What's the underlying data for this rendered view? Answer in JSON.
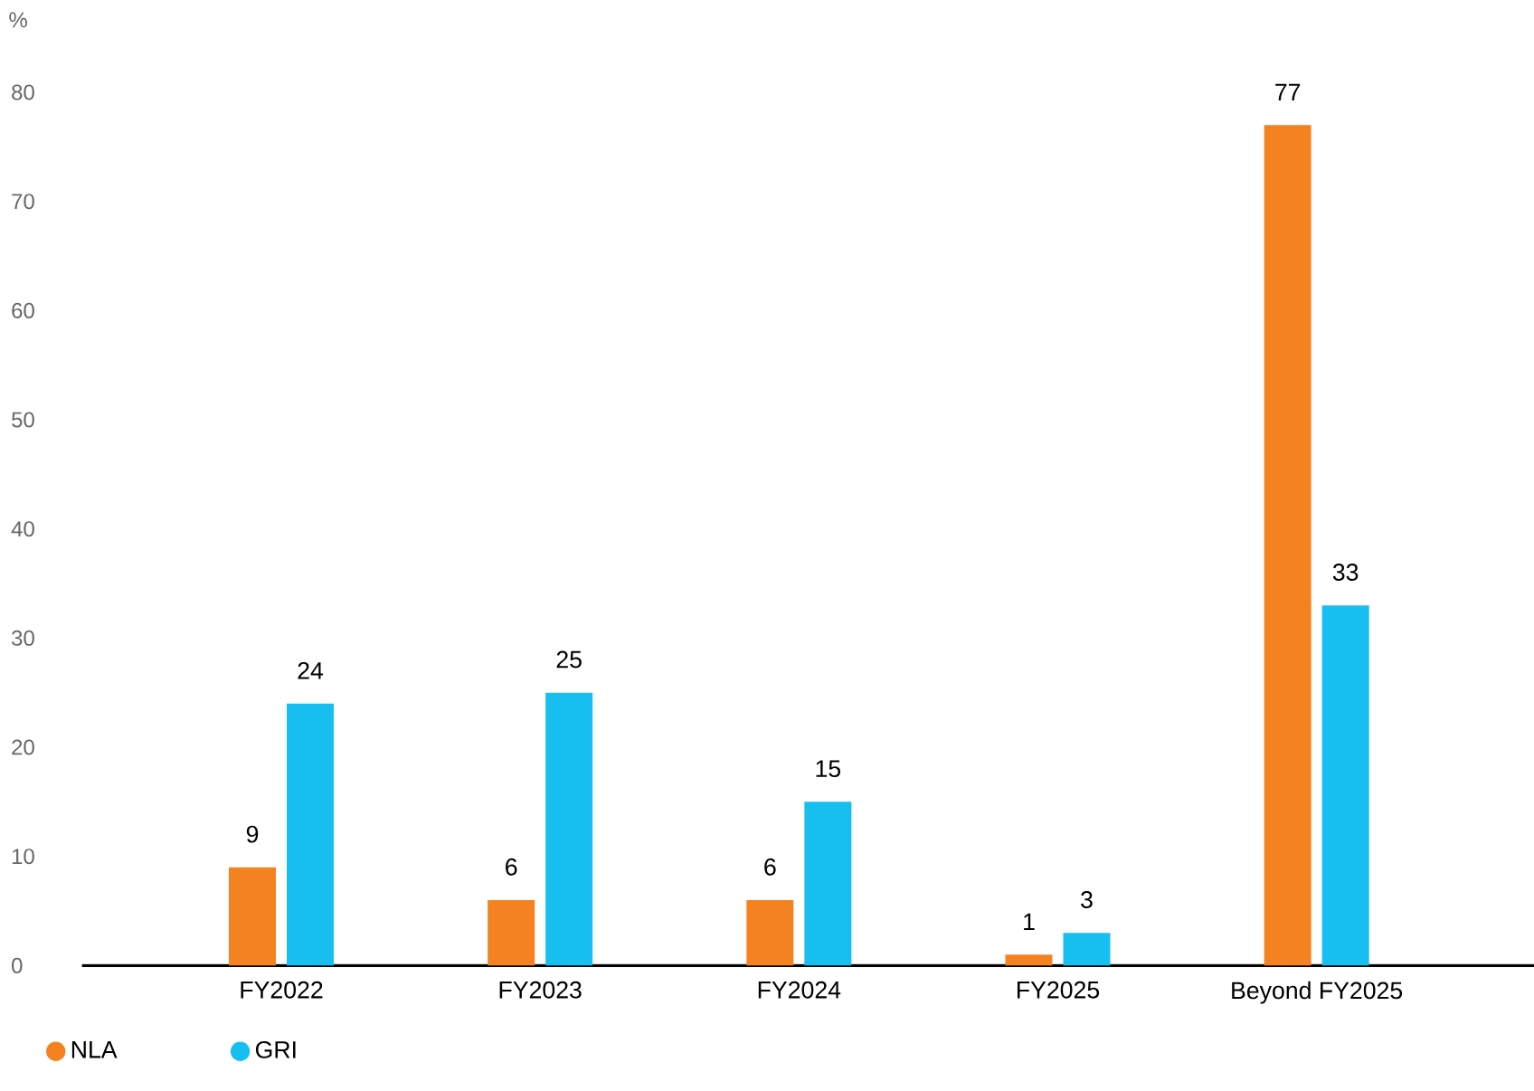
{
  "chart_data": {
    "type": "bar",
    "ylabel": "%",
    "categories": [
      "FY2022",
      "FY2023",
      "FY2024",
      "FY2025",
      "Beyond FY2025"
    ],
    "series": [
      {
        "name": "NLA",
        "color": "#f58220",
        "values": [
          9,
          6,
          6,
          1,
          77
        ]
      },
      {
        "name": "GRI",
        "color": "#17bff0",
        "values": [
          24,
          25,
          15,
          3,
          33
        ]
      }
    ],
    "ylim": [
      0,
      80
    ],
    "yticks": [
      0,
      10,
      20,
      30,
      40,
      50,
      60,
      70,
      80
    ],
    "data_labels": true,
    "grid": false,
    "legend": "bottom left"
  }
}
